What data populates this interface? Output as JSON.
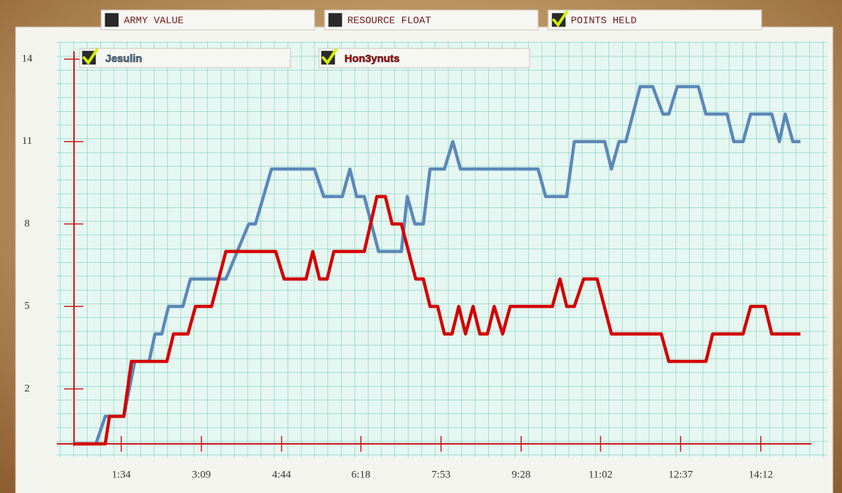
{
  "tabs": [
    {
      "label": "ARMY VALUE",
      "checked": false
    },
    {
      "label": "RESOURCE FLOAT",
      "checked": false
    },
    {
      "label": "POINTS HELD",
      "checked": true
    }
  ],
  "chart_data": {
    "type": "line",
    "series": [
      {
        "name": "Jesulin",
        "color": "#5b88b8",
        "checked": true,
        "x": [
          38,
          64,
          75,
          97,
          110,
          127,
          134,
          142,
          150,
          167,
          176,
          218,
          245,
          253,
          272,
          323,
          334,
          356,
          365,
          373,
          382,
          399,
          426,
          433,
          442,
          452,
          460,
          477,
          487,
          496,
          588,
          597,
          622,
          631,
          667,
          675,
          684,
          692,
          709,
          724,
          736,
          743,
          753,
          778,
          787,
          812,
          820,
          831,
          840,
          865,
          874,
          881,
          890,
          899
        ],
        "values": [
          0,
          0,
          1,
          1,
          3,
          3,
          4,
          4,
          5,
          5,
          6,
          6,
          8,
          8,
          10,
          10,
          9,
          9,
          10,
          9,
          9,
          7,
          7,
          9,
          8,
          8,
          10,
          10,
          11,
          10,
          10,
          9,
          9,
          11,
          11,
          10,
          11,
          11,
          13,
          13,
          12,
          12,
          13,
          13,
          12,
          12,
          11,
          11,
          12,
          12,
          11,
          12,
          11,
          11
        ]
      },
      {
        "name": "Hon3ynuts",
        "color": "#d40000",
        "checked": true,
        "x": [
          38,
          75,
          80,
          97,
          106,
          148,
          156,
          173,
          182,
          201,
          218,
          277,
          287,
          313,
          321,
          329,
          338,
          346,
          382,
          397,
          407,
          415,
          426,
          443,
          452,
          460,
          469,
          477,
          486,
          494,
          502,
          511,
          519,
          528,
          536,
          546,
          555,
          605,
          614,
          622,
          631,
          642,
          658,
          675,
          734,
          743,
          787,
          795,
          831,
          840,
          857,
          865,
          899
        ],
        "values": [
          0,
          0,
          1,
          1,
          3,
          3,
          4,
          4,
          5,
          5,
          7,
          7,
          6,
          6,
          7,
          6,
          6,
          7,
          7,
          9,
          9,
          8,
          8,
          6,
          6,
          5,
          5,
          4,
          4,
          5,
          4,
          5,
          4,
          4,
          5,
          4,
          5,
          5,
          6,
          5,
          5,
          6,
          6,
          4,
          4,
          3,
          3,
          4,
          4,
          5,
          5,
          4,
          4
        ]
      }
    ],
    "xlim": [
      38,
      912
    ],
    "xticks": [
      {
        "value": 94,
        "label": "1:34"
      },
      {
        "value": 189,
        "label": "3:09"
      },
      {
        "value": 284,
        "label": "4:44"
      },
      {
        "value": 378,
        "label": "6:18"
      },
      {
        "value": 473,
        "label": "7:53"
      },
      {
        "value": 568,
        "label": "9:28"
      },
      {
        "value": 662,
        "label": "11:02"
      },
      {
        "value": 757,
        "label": "12:37"
      },
      {
        "value": 852,
        "label": "14:12"
      }
    ],
    "ylim": [
      0,
      14
    ],
    "yticks": [
      14,
      11,
      8,
      5,
      2
    ],
    "grid": true
  }
}
